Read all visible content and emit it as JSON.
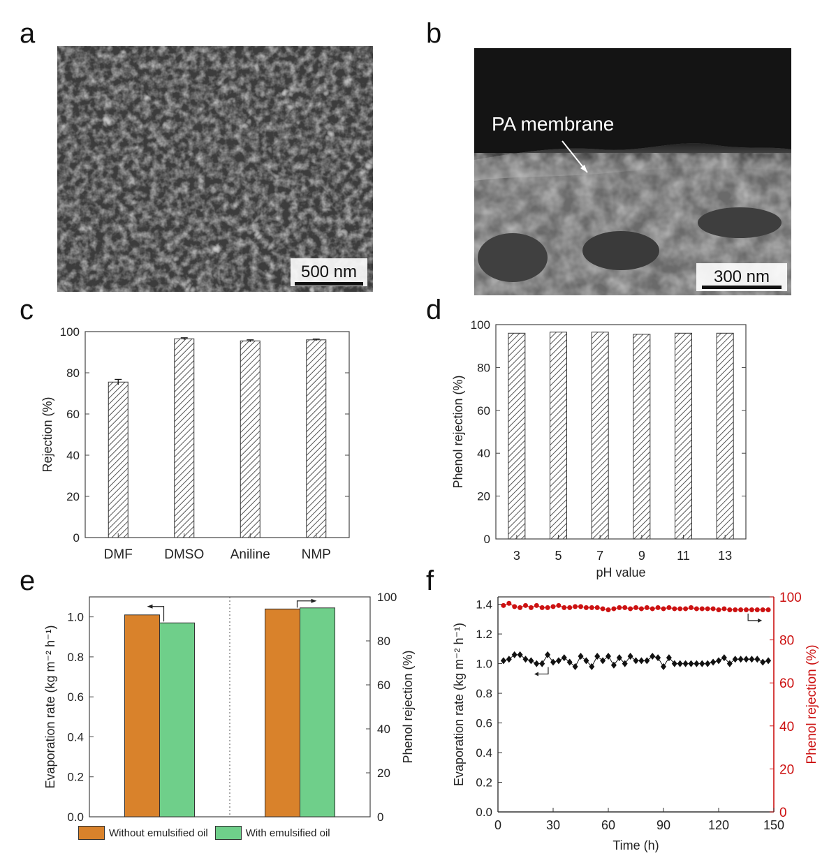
{
  "panels": {
    "a": {
      "letter": "a",
      "scale_bar": "500 nm"
    },
    "b": {
      "letter": "b",
      "scale_bar": "300 nm",
      "annotation": "PA membrane"
    },
    "c": {
      "letter": "c"
    },
    "d": {
      "letter": "d"
    },
    "e": {
      "letter": "e"
    },
    "f": {
      "letter": "f"
    }
  },
  "colors": {
    "orange": "#d9822b",
    "green": "#6fcf8a",
    "red": "#cc1111",
    "black": "#111111",
    "hatch": "#555555"
  },
  "chart_data": [
    {
      "id": "c",
      "type": "bar",
      "categories": [
        "DMF",
        "DMSO",
        "Aniline",
        "NMP"
      ],
      "values": [
        75.5,
        96.5,
        95.5,
        96
      ],
      "errors": [
        1.3,
        0.5,
        0.5,
        0.4
      ],
      "ylabel": "Rejection (%)",
      "ylim": [
        0,
        100
      ],
      "yticks": [
        0,
        20,
        40,
        60,
        80,
        100
      ]
    },
    {
      "id": "d",
      "type": "bar",
      "categories": [
        "3",
        "5",
        "7",
        "9",
        "11",
        "13"
      ],
      "values": [
        96,
        96.5,
        96.5,
        95.5,
        96,
        96
      ],
      "xlabel": "pH value",
      "ylabel": "Phenol rejection (%)",
      "ylim": [
        0,
        100
      ],
      "yticks": [
        0,
        20,
        40,
        60,
        80,
        100
      ]
    },
    {
      "id": "e",
      "type": "bar",
      "groups": [
        "evaporation",
        "rejection"
      ],
      "series": [
        {
          "name": "Without emulsified oil",
          "values": [
            1.01,
            94.5
          ]
        },
        {
          "name": "With emulsified oil",
          "values": [
            0.97,
            95
          ]
        }
      ],
      "ylabel": "Evaporation rate (kg m⁻² h⁻¹)",
      "y2label": "Phenol rejection (%)",
      "ylim": [
        0,
        1.1
      ],
      "y2lim": [
        0,
        100
      ],
      "yticks": [
        "0.0",
        "0.2",
        "0.4",
        "0.6",
        "0.8",
        "1.0"
      ],
      "y2ticks": [
        "0",
        "20",
        "40",
        "60",
        "80",
        "100"
      ],
      "legend": "bottom"
    },
    {
      "id": "f",
      "type": "line",
      "xlabel": "Time (h)",
      "ylabel": "Evaporation rate (kg m⁻² h⁻¹)",
      "y2label": "Phenol rejection (%)",
      "xlim": [
        0,
        150
      ],
      "ylim": [
        0,
        1.45
      ],
      "y2lim": [
        0,
        100
      ],
      "xticks": [
        "0",
        "30",
        "60",
        "90",
        "120",
        "150"
      ],
      "yticks": [
        "0.0",
        "0.2",
        "0.4",
        "0.6",
        "0.8",
        "1.0",
        "1.2",
        "1.4"
      ],
      "y2ticks": [
        "0",
        "20",
        "40",
        "60",
        "80",
        "100"
      ],
      "series": [
        {
          "axis": "left",
          "x": [
            3,
            6,
            9,
            12,
            15,
            18,
            21,
            24,
            27,
            30,
            33,
            36,
            39,
            42,
            45,
            48,
            51,
            54,
            57,
            60,
            63,
            66,
            69,
            72,
            75,
            78,
            81,
            84,
            87,
            90,
            93,
            96,
            99,
            102,
            105,
            108,
            111,
            114,
            117,
            120,
            123,
            126,
            129,
            132,
            135,
            138,
            141,
            144,
            147
          ],
          "y": [
            1.02,
            1.03,
            1.06,
            1.06,
            1.03,
            1.02,
            1.0,
            1.0,
            1.06,
            1.01,
            1.02,
            1.04,
            1.01,
            0.98,
            1.05,
            1.02,
            0.98,
            1.05,
            1.02,
            1.05,
            0.99,
            1.04,
            1.0,
            1.05,
            1.02,
            1.02,
            1.02,
            1.05,
            1.04,
            0.98,
            1.04,
            1.0,
            1.0,
            1.0,
            1.0,
            1.0,
            1.0,
            1.0,
            1.01,
            1.02,
            1.04,
            1.0,
            1.03,
            1.03,
            1.03,
            1.03,
            1.03,
            1.01,
            1.02
          ]
        },
        {
          "axis": "right",
          "x": [
            3,
            6,
            9,
            12,
            15,
            18,
            21,
            24,
            27,
            30,
            33,
            36,
            39,
            42,
            45,
            48,
            51,
            54,
            57,
            60,
            63,
            66,
            69,
            72,
            75,
            78,
            81,
            84,
            87,
            90,
            93,
            96,
            99,
            102,
            105,
            108,
            111,
            114,
            117,
            120,
            123,
            126,
            129,
            132,
            135,
            138,
            141,
            144,
            147
          ],
          "y": [
            96,
            97,
            95.5,
            95,
            96,
            95,
            96,
            95,
            95,
            95.5,
            96,
            95,
            95,
            95.5,
            95.5,
            95,
            95,
            95,
            94.5,
            94,
            94.5,
            95,
            95,
            94.5,
            95,
            94.5,
            95,
            94.5,
            95,
            94.5,
            95,
            94.5,
            94.5,
            94.5,
            95,
            94.5,
            94.5,
            94.5,
            94.5,
            94,
            94.5,
            94,
            94,
            94,
            94,
            94,
            94,
            94,
            94
          ]
        }
      ]
    }
  ]
}
